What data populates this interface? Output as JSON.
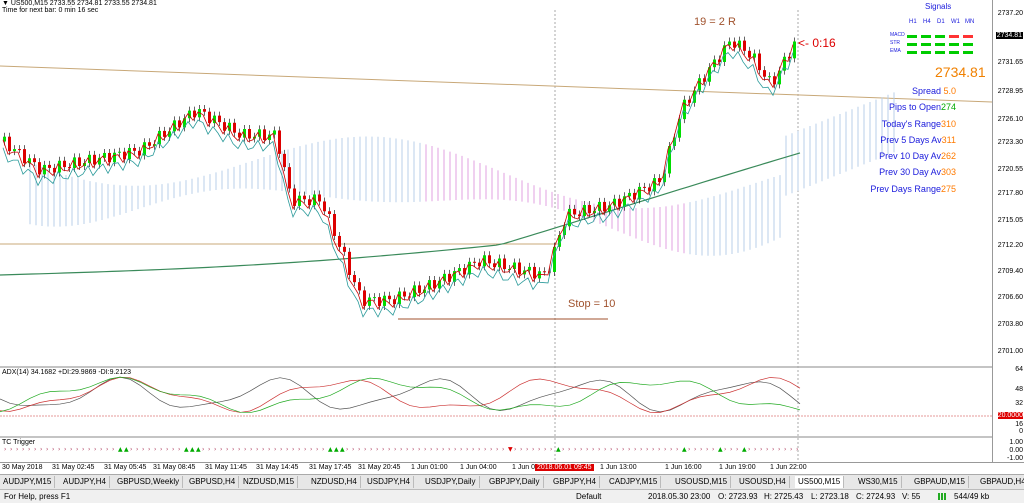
{
  "header": {
    "symbol_line": "▼ US500,M15  2733.55 2734.81 2733.55 2734.81",
    "timer_line": "Time for next bar: 0 min 16 sec"
  },
  "annotations": {
    "target_text": "19 = 2 R",
    "stop_text": "Stop = 10",
    "countdown": "<- 0:16",
    "current_price": "2734.81"
  },
  "signals": {
    "title": "Signals",
    "timeframes": [
      "H1",
      "H4",
      "D1",
      "W1",
      "MN"
    ],
    "rows": [
      "MACD",
      "STR",
      "EMA"
    ],
    "colors": {
      "green": "#00cc00",
      "red": "#ff3333"
    }
  },
  "info_panel": [
    {
      "label": "Spread ",
      "value": "5.0"
    },
    {
      "label": "Pips to Open",
      "value": "274"
    },
    {
      "label": "Today's Range",
      "value": "310"
    },
    {
      "label": "Prev 5 Days Av",
      "value": "311"
    },
    {
      "label": "Prev 10 Day Av",
      "value": "262"
    },
    {
      "label": "Prev 30 Day Av",
      "value": "303"
    },
    {
      "label": "Prev Days Range",
      "value": "275"
    }
  ],
  "price_axis": [
    "2737.20",
    "2734.81",
    "2731.65",
    "2728.95",
    "2726.10",
    "2723.30",
    "2720.55",
    "2717.80",
    "2715.05",
    "2712.20",
    "2709.40",
    "2706.60",
    "2703.80",
    "2701.00"
  ],
  "indicators": {
    "adx_label": "ADX(14) 34.1682 +DI:29.9869 -DI:9.2123",
    "adx_axis": [
      "64",
      "48",
      "32",
      "20.0000",
      "16",
      "0"
    ],
    "tc_label": "TC Trigger",
    "tc_axis": [
      "1.00",
      "0.00",
      "-1.00"
    ]
  },
  "time_axis": [
    "30 May 2018",
    "31 May 02:45",
    "31 May 05:45",
    "31 May 08:45",
    "31 May 11:45",
    "31 May 14:45",
    "31 May 17:45",
    "31 May 20:45",
    "1 Jun 01:00",
    "1 Jun 04:00",
    "1 Jun 0",
    "2018.06.01 09:45",
    "1 Jun 13:00",
    "1 Jun 16:00",
    "1 Jun 19:00",
    "1 Jun 22:00"
  ],
  "tabs": [
    "AUDJPY,M15",
    "AUDJPY,H4",
    "GBPUSD,Weekly",
    "GBPUSD,H4",
    "NZDUSD,M15",
    "NZDUSD,H4",
    "USDJPY,H4",
    "USDJPY,Daily",
    "GBPJPY,Daily",
    "GBPJPY,H4",
    "CADJPY,M15",
    "USOUSD,M15",
    "USOUSD,H4",
    "US500,M15",
    "WS30,M15",
    "GBPAUD,M15",
    "GBPAUD,H4"
  ],
  "active_tab": "US500,M15",
  "status": {
    "help": "For Help, press F1",
    "profile": "Default",
    "datetime": "2018.05.30 23:00",
    "open": "O: 2723.93",
    "high": "H: 2725.43",
    "low": "L: 2723.18",
    "close": "C: 2724.93",
    "volume": "V: 55",
    "traffic": "544/49 kb"
  },
  "colors": {
    "bull": "#00dd00",
    "bear": "#dd0000",
    "info_blue": "#1a1adc",
    "info_orange": "#ff7a00",
    "price_orange": "#f08000",
    "annotation_brown": "#a0522d"
  }
}
